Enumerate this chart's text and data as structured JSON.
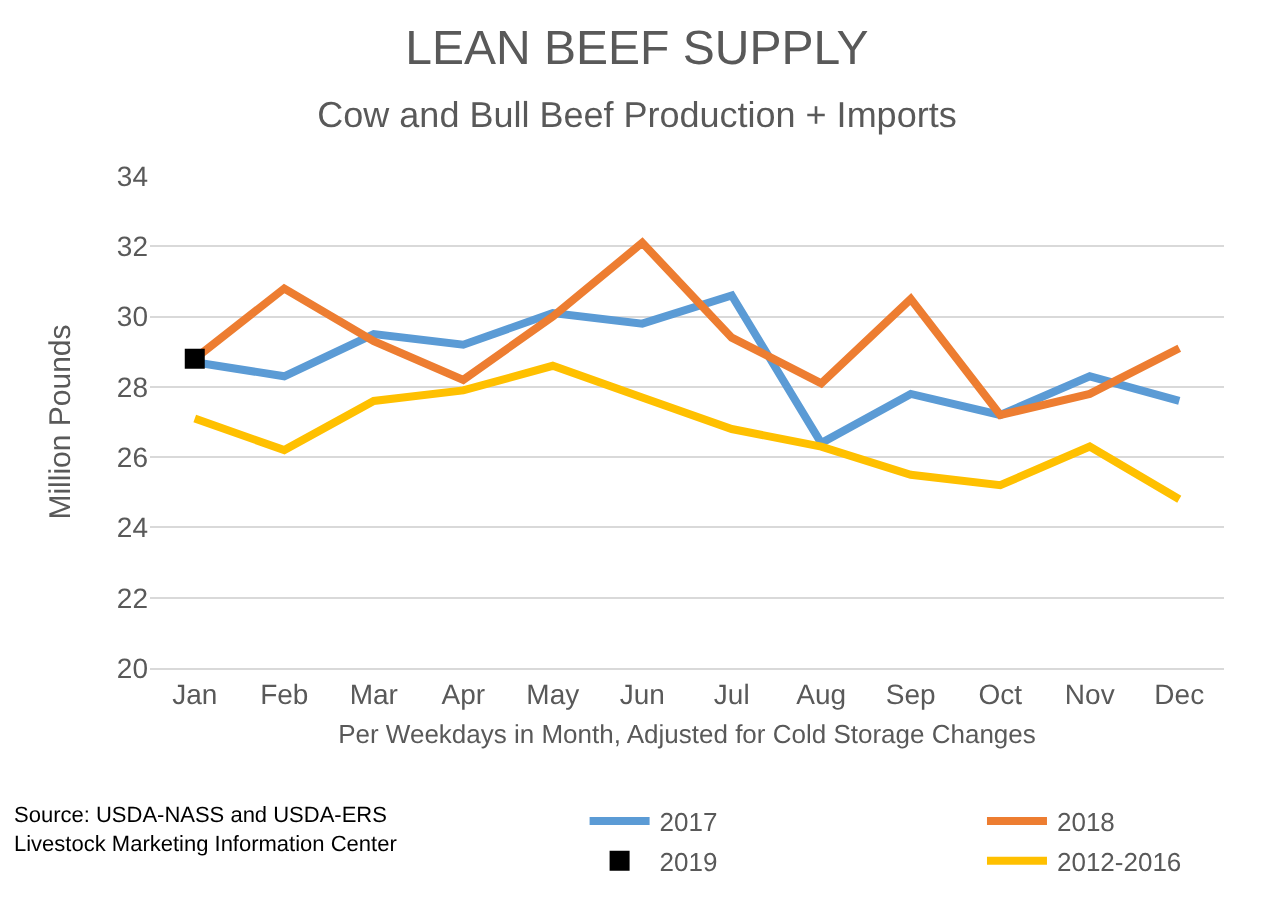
{
  "chart_data": {
    "type": "line",
    "title": "LEAN BEEF SUPPLY",
    "subtitle": "Cow and Bull Beef Production + Imports",
    "xlabel": "Per Weekdays in Month, Adjusted for Cold Storage Changes",
    "ylabel": "Million Pounds",
    "categories": [
      "Jan",
      "Feb",
      "Mar",
      "Apr",
      "May",
      "Jun",
      "Jul",
      "Aug",
      "Sep",
      "Oct",
      "Nov",
      "Dec"
    ],
    "series": [
      {
        "name": "2017",
        "color": "#5b9bd5",
        "values": [
          28.7,
          28.3,
          29.5,
          29.2,
          30.1,
          29.8,
          30.6,
          26.4,
          27.8,
          27.2,
          28.3,
          27.6
        ]
      },
      {
        "name": "2018",
        "color": "#ed7d31",
        "values": [
          28.8,
          30.8,
          29.3,
          28.2,
          30.0,
          32.1,
          29.4,
          28.1,
          30.5,
          27.2,
          27.8,
          29.1
        ]
      },
      {
        "name": "2019",
        "color": "#000000",
        "type": "scatter",
        "marker": "square",
        "values": [
          28.8,
          null,
          null,
          null,
          null,
          null,
          null,
          null,
          null,
          null,
          null,
          null
        ]
      },
      {
        "name": "2012-2016",
        "color": "#ffc000",
        "values": [
          27.1,
          26.2,
          27.6,
          27.9,
          28.6,
          27.7,
          26.8,
          26.3,
          25.5,
          25.2,
          26.3,
          24.8
        ]
      }
    ],
    "ylim": [
      20,
      34
    ],
    "yticks": [
      20,
      22,
      24,
      26,
      28,
      30,
      32,
      34
    ],
    "grid": "y",
    "legend": "bottom right",
    "annotations": [
      "Source: USDA-NASS and USDA-ERS\nLivestock Marketing Information Center"
    ]
  }
}
